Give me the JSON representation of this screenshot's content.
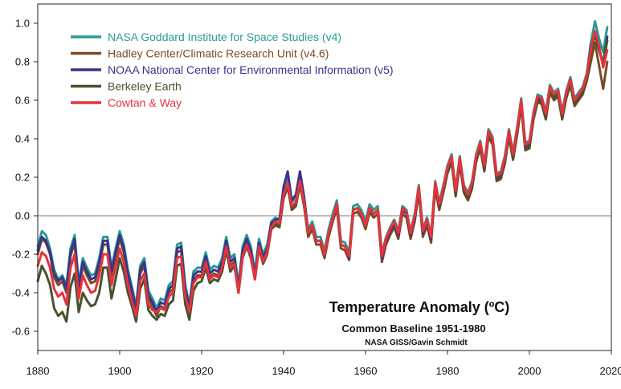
{
  "chart_data": {
    "type": "line",
    "title": "Temperature Anomaly (ºC)",
    "subtitle": "Common Baseline 1951-1980",
    "credit": "NASA GISS/Gavin Schmidt",
    "xlabel": "",
    "ylabel": "",
    "xlim": [
      1880,
      2020
    ],
    "ylim": [
      -0.7,
      1.1
    ],
    "x_ticks": [
      1880,
      1900,
      1920,
      1940,
      1960,
      1980,
      2000,
      2020
    ],
    "y_ticks": [
      -0.6,
      -0.4,
      -0.2,
      0.0,
      0.2,
      0.4,
      0.6,
      0.8,
      1.0
    ],
    "y_tick_labels": [
      "-0.6",
      "-0.4",
      "-0.2",
      "0.0",
      "0.2",
      "0.4",
      "0.6",
      "0.8",
      "1.0"
    ],
    "zero_line": true,
    "grid": false,
    "legend_position": "top-left",
    "x": [
      1880,
      1881,
      1882,
      1883,
      1884,
      1885,
      1886,
      1887,
      1888,
      1889,
      1890,
      1891,
      1892,
      1893,
      1894,
      1895,
      1896,
      1897,
      1898,
      1899,
      1900,
      1901,
      1902,
      1903,
      1904,
      1905,
      1906,
      1907,
      1908,
      1909,
      1910,
      1911,
      1912,
      1913,
      1914,
      1915,
      1916,
      1917,
      1918,
      1919,
      1920,
      1921,
      1922,
      1923,
      1924,
      1925,
      1926,
      1927,
      1928,
      1929,
      1930,
      1931,
      1932,
      1933,
      1934,
      1935,
      1936,
      1937,
      1938,
      1939,
      1940,
      1941,
      1942,
      1943,
      1944,
      1945,
      1946,
      1947,
      1948,
      1949,
      1950,
      1951,
      1952,
      1953,
      1954,
      1955,
      1956,
      1957,
      1958,
      1959,
      1960,
      1961,
      1962,
      1963,
      1964,
      1965,
      1966,
      1967,
      1968,
      1969,
      1970,
      1971,
      1972,
      1973,
      1974,
      1975,
      1976,
      1977,
      1978,
      1979,
      1980,
      1981,
      1982,
      1983,
      1984,
      1985,
      1986,
      1987,
      1988,
      1989,
      1990,
      1991,
      1992,
      1993,
      1994,
      1995,
      1996,
      1997,
      1998,
      1999,
      2000,
      2001,
      2002,
      2003,
      2004,
      2005,
      2006,
      2007,
      2008,
      2009,
      2010,
      2011,
      2012,
      2013,
      2014,
      2015,
      2016,
      2017,
      2018,
      2019
    ],
    "series": [
      {
        "name": "NASA Goddard Institute for Space Studies (v4)",
        "color": "#2a9b93",
        "values": [
          -0.16,
          -0.08,
          -0.1,
          -0.17,
          -0.28,
          -0.33,
          -0.31,
          -0.36,
          -0.17,
          -0.1,
          -0.35,
          -0.22,
          -0.27,
          -0.31,
          -0.3,
          -0.22,
          -0.11,
          -0.11,
          -0.27,
          -0.17,
          -0.08,
          -0.15,
          -0.28,
          -0.37,
          -0.47,
          -0.26,
          -0.22,
          -0.39,
          -0.43,
          -0.48,
          -0.43,
          -0.44,
          -0.36,
          -0.34,
          -0.15,
          -0.14,
          -0.36,
          -0.46,
          -0.29,
          -0.27,
          -0.27,
          -0.19,
          -0.28,
          -0.26,
          -0.27,
          -0.22,
          -0.11,
          -0.22,
          -0.2,
          -0.36,
          -0.16,
          -0.1,
          -0.16,
          -0.29,
          -0.12,
          -0.2,
          -0.15,
          -0.03,
          -0.01,
          -0.02,
          0.13,
          0.19,
          0.07,
          0.09,
          0.2,
          0.09,
          -0.07,
          -0.03,
          -0.11,
          -0.11,
          -0.18,
          -0.07,
          0.01,
          0.08,
          -0.13,
          -0.14,
          -0.19,
          0.05,
          0.06,
          0.03,
          -0.03,
          0.06,
          0.03,
          0.05,
          -0.2,
          -0.11,
          -0.06,
          -0.02,
          -0.08,
          0.05,
          0.03,
          -0.08,
          0.01,
          0.16,
          -0.07,
          -0.01,
          -0.1,
          0.18,
          0.07,
          0.16,
          0.26,
          0.32,
          0.14,
          0.31,
          0.16,
          0.12,
          0.18,
          0.32,
          0.39,
          0.27,
          0.45,
          0.41,
          0.22,
          0.23,
          0.31,
          0.45,
          0.33,
          0.46,
          0.61,
          0.38,
          0.39,
          0.54,
          0.63,
          0.62,
          0.54,
          0.68,
          0.64,
          0.66,
          0.54,
          0.65,
          0.72,
          0.61,
          0.64,
          0.67,
          0.74,
          0.9,
          1.01,
          0.92,
          0.85,
          0.98
        ]
      },
      {
        "name": "Hadley Center/Climatic Research Unit (v4.6)",
        "color": "#7a4a26",
        "values": [
          -0.2,
          -0.12,
          -0.14,
          -0.2,
          -0.32,
          -0.36,
          -0.34,
          -0.4,
          -0.21,
          -0.14,
          -0.39,
          -0.26,
          -0.31,
          -0.35,
          -0.34,
          -0.26,
          -0.15,
          -0.15,
          -0.31,
          -0.21,
          -0.12,
          -0.19,
          -0.32,
          -0.41,
          -0.51,
          -0.3,
          -0.26,
          -0.43,
          -0.47,
          -0.52,
          -0.47,
          -0.48,
          -0.4,
          -0.38,
          -0.19,
          -0.18,
          -0.4,
          -0.5,
          -0.33,
          -0.31,
          -0.31,
          -0.23,
          -0.32,
          -0.3,
          -0.31,
          -0.26,
          -0.15,
          -0.26,
          -0.24,
          -0.4,
          -0.2,
          -0.14,
          -0.2,
          -0.33,
          -0.16,
          -0.24,
          -0.19,
          -0.07,
          -0.05,
          -0.06,
          0.09,
          0.15,
          0.03,
          0.05,
          0.16,
          0.05,
          -0.11,
          -0.07,
          -0.15,
          -0.15,
          -0.22,
          -0.11,
          -0.03,
          0.04,
          -0.17,
          -0.18,
          -0.23,
          0.01,
          0.02,
          -0.01,
          -0.07,
          0.02,
          -0.01,
          0.01,
          -0.24,
          -0.15,
          -0.1,
          -0.06,
          -0.12,
          0.01,
          -0.01,
          -0.12,
          -0.03,
          0.12,
          -0.11,
          -0.05,
          -0.14,
          0.14,
          0.03,
          0.12,
          0.22,
          0.28,
          0.1,
          0.27,
          0.12,
          0.08,
          0.14,
          0.28,
          0.35,
          0.23,
          0.41,
          0.37,
          0.18,
          0.19,
          0.27,
          0.41,
          0.29,
          0.42,
          0.57,
          0.34,
          0.35,
          0.5,
          0.59,
          0.58,
          0.5,
          0.64,
          0.6,
          0.62,
          0.5,
          0.61,
          0.68,
          0.57,
          0.6,
          0.63,
          0.7,
          0.8,
          0.9,
          0.78,
          0.66,
          0.8
        ]
      },
      {
        "name": "NOAA National Center for Environmental Information (v5)",
        "color": "#39348a",
        "values": [
          -0.18,
          -0.11,
          -0.13,
          -0.19,
          -0.3,
          -0.34,
          -0.32,
          -0.38,
          -0.19,
          -0.12,
          -0.37,
          -0.24,
          -0.29,
          -0.33,
          -0.32,
          -0.24,
          -0.13,
          -0.13,
          -0.29,
          -0.19,
          -0.1,
          -0.17,
          -0.3,
          -0.39,
          -0.49,
          -0.28,
          -0.24,
          -0.41,
          -0.45,
          -0.5,
          -0.45,
          -0.46,
          -0.38,
          -0.36,
          -0.17,
          -0.16,
          -0.38,
          -0.48,
          -0.31,
          -0.29,
          -0.29,
          -0.21,
          -0.3,
          -0.28,
          -0.29,
          -0.24,
          -0.13,
          -0.24,
          -0.22,
          -0.38,
          -0.18,
          -0.12,
          -0.18,
          -0.31,
          -0.14,
          -0.22,
          -0.17,
          -0.04,
          -0.02,
          -0.02,
          0.15,
          0.23,
          0.08,
          0.11,
          0.23,
          0.1,
          -0.09,
          -0.05,
          -0.13,
          -0.13,
          -0.2,
          -0.09,
          -0.01,
          0.06,
          -0.15,
          -0.16,
          -0.22,
          0.03,
          0.04,
          0.01,
          -0.05,
          0.04,
          0.01,
          0.03,
          -0.22,
          -0.13,
          -0.08,
          -0.04,
          -0.1,
          0.03,
          0.01,
          -0.1,
          -0.01,
          0.14,
          -0.09,
          -0.03,
          -0.12,
          0.16,
          0.05,
          0.14,
          0.24,
          0.3,
          0.12,
          0.29,
          0.14,
          0.1,
          0.16,
          0.3,
          0.37,
          0.25,
          0.43,
          0.39,
          0.2,
          0.21,
          0.29,
          0.43,
          0.31,
          0.44,
          0.59,
          0.36,
          0.37,
          0.52,
          0.61,
          0.6,
          0.52,
          0.66,
          0.62,
          0.64,
          0.52,
          0.63,
          0.7,
          0.59,
          0.62,
          0.65,
          0.72,
          0.88,
          0.95,
          0.87,
          0.79,
          0.93
        ]
      },
      {
        "name": "Berkeley Earth",
        "color": "#46532f",
        "values": [
          -0.34,
          -0.26,
          -0.3,
          -0.36,
          -0.48,
          -0.52,
          -0.5,
          -0.55,
          -0.37,
          -0.3,
          -0.5,
          -0.4,
          -0.44,
          -0.47,
          -0.46,
          -0.4,
          -0.27,
          -0.27,
          -0.43,
          -0.33,
          -0.22,
          -0.29,
          -0.4,
          -0.47,
          -0.55,
          -0.38,
          -0.33,
          -0.49,
          -0.52,
          -0.54,
          -0.51,
          -0.52,
          -0.46,
          -0.44,
          -0.26,
          -0.25,
          -0.46,
          -0.54,
          -0.39,
          -0.35,
          -0.34,
          -0.27,
          -0.35,
          -0.33,
          -0.34,
          -0.29,
          -0.18,
          -0.29,
          -0.26,
          -0.4,
          -0.22,
          -0.16,
          -0.22,
          -0.33,
          -0.17,
          -0.25,
          -0.2,
          -0.07,
          -0.04,
          -0.05,
          0.1,
          0.15,
          0.04,
          0.06,
          0.17,
          0.06,
          -0.09,
          -0.05,
          -0.13,
          -0.13,
          -0.2,
          -0.09,
          -0.01,
          0.06,
          -0.15,
          -0.16,
          -0.21,
          0.03,
          0.04,
          0.01,
          -0.05,
          0.04,
          0.01,
          0.03,
          -0.2,
          -0.12,
          -0.07,
          -0.03,
          -0.09,
          0.04,
          0.02,
          -0.09,
          0.0,
          0.14,
          -0.08,
          -0.02,
          -0.11,
          0.16,
          0.05,
          0.14,
          0.23,
          0.29,
          0.11,
          0.28,
          0.13,
          0.09,
          0.15,
          0.29,
          0.36,
          0.24,
          0.42,
          0.38,
          0.19,
          0.2,
          0.28,
          0.42,
          0.3,
          0.43,
          0.58,
          0.35,
          0.36,
          0.51,
          0.6,
          0.59,
          0.51,
          0.65,
          0.61,
          0.63,
          0.51,
          0.62,
          0.69,
          0.58,
          0.61,
          0.64,
          0.71,
          0.86,
          0.94,
          0.86,
          0.79,
          0.91
        ]
      },
      {
        "name": "Cowtan & Way",
        "color": "#e8323c",
        "values": [
          -0.26,
          -0.19,
          -0.21,
          -0.27,
          -0.38,
          -0.42,
          -0.4,
          -0.46,
          -0.27,
          -0.2,
          -0.43,
          -0.31,
          -0.36,
          -0.4,
          -0.39,
          -0.31,
          -0.2,
          -0.2,
          -0.36,
          -0.26,
          -0.17,
          -0.24,
          -0.36,
          -0.44,
          -0.52,
          -0.34,
          -0.3,
          -0.46,
          -0.49,
          -0.5,
          -0.48,
          -0.49,
          -0.42,
          -0.4,
          -0.22,
          -0.21,
          -0.42,
          -0.5,
          -0.35,
          -0.32,
          -0.32,
          -0.24,
          -0.33,
          -0.31,
          -0.32,
          -0.27,
          -0.16,
          -0.27,
          -0.25,
          -0.4,
          -0.21,
          -0.15,
          -0.21,
          -0.33,
          -0.16,
          -0.24,
          -0.19,
          -0.06,
          -0.03,
          -0.04,
          0.11,
          0.17,
          0.05,
          0.07,
          0.18,
          0.07,
          -0.09,
          -0.05,
          -0.13,
          -0.13,
          -0.2,
          -0.09,
          -0.01,
          0.06,
          -0.15,
          -0.16,
          -0.21,
          0.03,
          0.04,
          0.01,
          -0.05,
          0.04,
          0.01,
          0.03,
          -0.21,
          -0.12,
          -0.07,
          -0.03,
          -0.09,
          0.04,
          0.02,
          -0.09,
          0.0,
          0.15,
          -0.08,
          -0.02,
          -0.11,
          0.17,
          0.06,
          0.15,
          0.25,
          0.31,
          0.13,
          0.3,
          0.15,
          0.11,
          0.17,
          0.31,
          0.38,
          0.26,
          0.44,
          0.4,
          0.21,
          0.22,
          0.3,
          0.44,
          0.32,
          0.45,
          0.6,
          0.37,
          0.38,
          0.53,
          0.62,
          0.61,
          0.53,
          0.67,
          0.63,
          0.65,
          0.53,
          0.64,
          0.71,
          0.6,
          0.63,
          0.66,
          0.73,
          0.87,
          0.96,
          0.88,
          0.77,
          0.86
        ]
      }
    ]
  }
}
